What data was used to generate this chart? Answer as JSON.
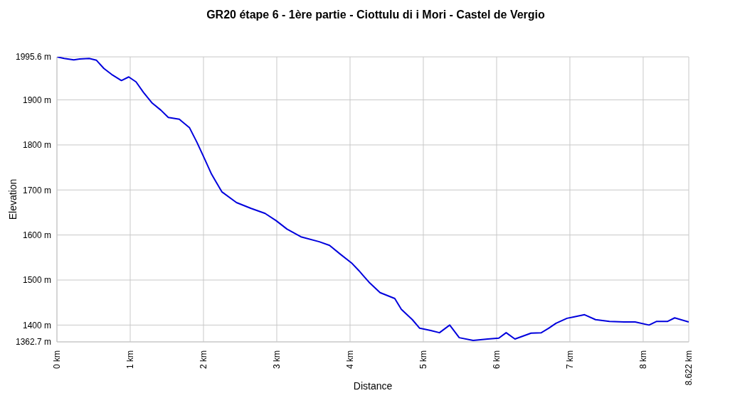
{
  "chart_data": {
    "type": "line",
    "title": "GR20 étape 6 - 1ère partie - Ciottulu di i Mori - Castel de Vergio",
    "xlabel": "Distance",
    "ylabel": "Elevation",
    "x": [
      0,
      0.1,
      0.23,
      0.31,
      0.44,
      0.54,
      0.64,
      0.76,
      0.88,
      0.98,
      1.08,
      1.18,
      1.3,
      1.42,
      1.52,
      1.67,
      1.81,
      1.91,
      2.01,
      2.11,
      2.25,
      2.45,
      2.65,
      2.84,
      2.99,
      3.14,
      3.33,
      3.58,
      3.72,
      3.87,
      4.02,
      4.12,
      4.26,
      4.41,
      4.61,
      4.7,
      4.85,
      4.95,
      5.1,
      5.22,
      5.36,
      5.49,
      5.68,
      5.88,
      6.03,
      6.13,
      6.25,
      6.47,
      6.61,
      6.71,
      6.81,
      6.96,
      7.05,
      7.2,
      7.35,
      7.54,
      7.74,
      7.89,
      8.08,
      8.18,
      8.33,
      8.43,
      8.622
    ],
    "series": [
      {
        "color": "#0000dd",
        "values": [
          1995.6,
          1992,
          1989,
          1991,
          1992,
          1988,
          1970,
          1955,
          1943,
          1951,
          1940,
          1917,
          1893,
          1877,
          1861,
          1857,
          1838,
          1806,
          1771,
          1735,
          1696,
          1672,
          1659,
          1648,
          1632,
          1613,
          1596,
          1585,
          1577,
          1557,
          1538,
          1521,
          1495,
          1472,
          1459,
          1435,
          1412,
          1393,
          1388,
          1383,
          1400,
          1372,
          1366,
          1369,
          1371,
          1383,
          1369,
          1382,
          1383,
          1393,
          1404,
          1415,
          1418,
          1423,
          1412,
          1408,
          1407,
          1407,
          1400,
          1408,
          1408,
          1416,
          1407
        ]
      }
    ],
    "xlim": [
      0,
      8.622
    ],
    "xticks": [
      {
        "value": 0,
        "label": "0 km"
      },
      {
        "value": 1,
        "label": "1 km"
      },
      {
        "value": 2,
        "label": "2 km"
      },
      {
        "value": 3,
        "label": "3 km"
      },
      {
        "value": 4,
        "label": "4 km"
      },
      {
        "value": 5,
        "label": "5 km"
      },
      {
        "value": 6,
        "label": "6 km"
      },
      {
        "value": 7,
        "label": "7 km"
      },
      {
        "value": 8,
        "label": "8 km"
      },
      {
        "value": 8.622,
        "label": "8.622 km"
      }
    ],
    "ylim": [
      1362.7,
      1995.6
    ],
    "yticks": [
      {
        "value": 1362.7,
        "label": "1362.7 m"
      },
      {
        "value": 1400,
        "label": "1400 m"
      },
      {
        "value": 1500,
        "label": "1500 m"
      },
      {
        "value": 1600,
        "label": "1600 m"
      },
      {
        "value": 1700,
        "label": "1700 m"
      },
      {
        "value": 1800,
        "label": "1800 m"
      },
      {
        "value": 1900,
        "label": "1900 m"
      },
      {
        "value": 1995.6,
        "label": "1995.6 m"
      }
    ],
    "grid": true,
    "marker": "none",
    "line_style": "solid",
    "legend": false
  }
}
